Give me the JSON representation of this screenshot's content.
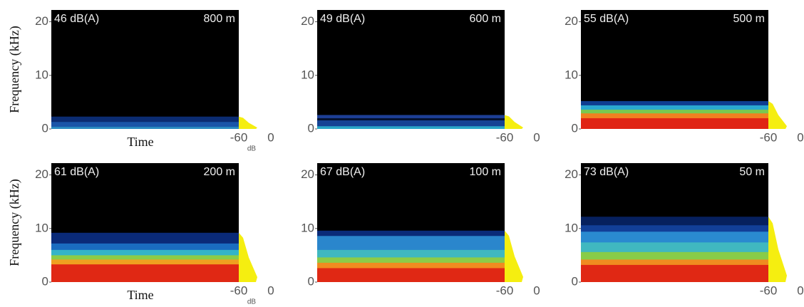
{
  "chart_data": [
    {
      "type": "spectrogram",
      "ylabel": "Frequency (kHz)",
      "xlabel": "Time",
      "level": "46 dB(A)",
      "distance": "800 m",
      "ylim": [
        0,
        22.2
      ],
      "yticks": [
        0,
        10,
        20
      ],
      "spectrum_xlim": [
        -60,
        0
      ],
      "spectrum_xticks": [
        -60,
        0
      ],
      "spectrum_unit": "dB",
      "bands": [
        {
          "top": 2.3,
          "color": "#0b2c72"
        },
        {
          "top": 1.3,
          "color": "#1a55a8"
        },
        {
          "top": 0.4,
          "color": "#2a8ac0"
        }
      ]
    },
    {
      "type": "spectrogram",
      "level": "49 dB(A)",
      "distance": "600 m",
      "ylim": [
        0,
        22.2
      ],
      "yticks": [
        0,
        10,
        20
      ],
      "spectrum_xlim": [
        -60,
        0
      ],
      "spectrum_xticks": [
        -60,
        0
      ],
      "bands": [
        {
          "top": 2.6,
          "color": "#1d3f96"
        },
        {
          "top": 2.0,
          "color": "#041230"
        },
        {
          "top": 1.6,
          "color": "#154394"
        },
        {
          "top": 0.5,
          "color": "#2aa6c8"
        }
      ]
    },
    {
      "type": "spectrogram",
      "level": "55 dB(A)",
      "distance": "500 m",
      "ylim": [
        0,
        22.2
      ],
      "yticks": [
        0,
        10,
        20
      ],
      "spectrum_xlim": [
        -60,
        0
      ],
      "spectrum_xticks": [
        -60,
        0
      ],
      "bands": [
        {
          "top": 5.2,
          "color": "#0e3c90"
        },
        {
          "top": 4.4,
          "color": "#2aa8d0"
        },
        {
          "top": 3.6,
          "color": "#78c850"
        },
        {
          "top": 2.9,
          "color": "#f08020"
        },
        {
          "top": 2.0,
          "color": "#e02414"
        }
      ]
    },
    {
      "type": "spectrogram",
      "ylabel": "Frequency (kHz)",
      "xlabel": "Time",
      "level": "61 dB(A)",
      "distance": "200 m",
      "ylim": [
        0,
        22.2
      ],
      "yticks": [
        0,
        10,
        20
      ],
      "spectrum_xlim": [
        -60,
        0
      ],
      "spectrum_xticks": [
        -60,
        0
      ],
      "spectrum_unit": "dB",
      "bands": [
        {
          "top": 9.2,
          "color": "#0a2a78"
        },
        {
          "top": 7.2,
          "color": "#1a6cc0"
        },
        {
          "top": 6.0,
          "color": "#34b4c8"
        },
        {
          "top": 5.0,
          "color": "#8ccc48"
        },
        {
          "top": 4.2,
          "color": "#f0a020"
        },
        {
          "top": 3.3,
          "color": "#e02814"
        }
      ]
    },
    {
      "type": "spectrogram",
      "level": "67 dB(A)",
      "distance": "100 m",
      "ylim": [
        0,
        22.2
      ],
      "yticks": [
        0,
        10,
        20
      ],
      "spectrum_xlim": [
        -60,
        0
      ],
      "spectrum_xticks": [
        -60,
        0
      ],
      "bands": [
        {
          "top": 9.6,
          "color": "#0a2a78"
        },
        {
          "top": 8.6,
          "color": "#2a86cc"
        },
        {
          "top": 6.0,
          "color": "#40b8c0"
        },
        {
          "top": 4.6,
          "color": "#8ccc48"
        },
        {
          "top": 3.6,
          "color": "#f08c20"
        },
        {
          "top": 2.6,
          "color": "#e02814"
        }
      ]
    },
    {
      "type": "spectrogram",
      "level": "73 dB(A)",
      "distance": "50 m",
      "ylim": [
        0,
        22.2
      ],
      "yticks": [
        0,
        10,
        20
      ],
      "spectrum_xlim": [
        -60,
        0
      ],
      "spectrum_xticks": [
        -60,
        0
      ],
      "bands": [
        {
          "top": 12.2,
          "color": "#06205e"
        },
        {
          "top": 10.6,
          "color": "#123f98"
        },
        {
          "top": 9.4,
          "color": "#2a8ad0"
        },
        {
          "top": 7.4,
          "color": "#40b8c0"
        },
        {
          "top": 5.6,
          "color": "#88cc48"
        },
        {
          "top": 4.2,
          "color": "#f08c20"
        },
        {
          "top": 3.2,
          "color": "#e02814"
        }
      ]
    }
  ]
}
